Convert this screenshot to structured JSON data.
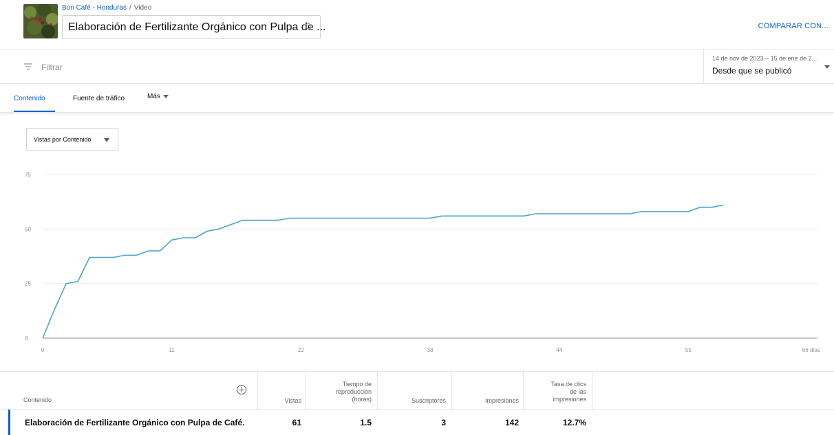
{
  "header": {
    "channel": "Bon Café - Honduras",
    "separator": "/",
    "section": "Video",
    "video_title": "Elaboración de Fertilizante Orgánico con Pulpa de ...",
    "compare_label": "COMPARAR CON..."
  },
  "filter": {
    "label": "Filtrar",
    "date_range": "14 de nov de 2023 – 15 de ene de 2...",
    "date_label": "Desde que se publicó"
  },
  "tabs": [
    {
      "label": "Contenido",
      "active": true
    },
    {
      "label": "Fuente de tráfico",
      "active": false
    },
    {
      "label": "Más",
      "active": false
    }
  ],
  "metric_select": {
    "label": "Vistas por Contenido"
  },
  "chart_data": {
    "type": "line",
    "x_unit_label": "días",
    "xlim": [
      0,
      66
    ],
    "ylim": [
      0,
      75
    ],
    "x_ticks": [
      0,
      11,
      22,
      33,
      44,
      55,
      66
    ],
    "y_ticks": [
      0,
      25,
      50,
      75
    ],
    "grid": true,
    "line_color": "#4aa3c8",
    "series": [
      {
        "x": [
          0,
          1,
          2,
          3,
          4,
          5,
          6,
          7,
          8,
          9,
          10,
          11,
          12,
          13,
          14,
          15,
          16,
          17,
          18,
          19,
          20,
          21,
          22,
          23,
          24,
          25,
          26,
          27,
          28,
          29,
          30,
          31,
          32,
          33,
          34,
          35,
          36,
          37,
          38,
          39,
          40,
          41,
          42,
          43,
          44,
          45,
          46,
          47,
          48,
          49,
          50,
          51,
          52,
          53,
          54,
          55,
          56,
          57,
          58
        ],
        "y": [
          0,
          13,
          25,
          26,
          37,
          37,
          37,
          38,
          38,
          40,
          40,
          45,
          46,
          46,
          49,
          50,
          52,
          54,
          54,
          54,
          54,
          55,
          55,
          55,
          55,
          55,
          55,
          55,
          55,
          55,
          55,
          55,
          55,
          55,
          56,
          56,
          56,
          56,
          56,
          56,
          56,
          56,
          57,
          57,
          57,
          57,
          57,
          57,
          57,
          57,
          57,
          58,
          58,
          58,
          58,
          58,
          60,
          60,
          61
        ]
      }
    ]
  },
  "table": {
    "headers": {
      "content": "Contenido",
      "views": "Vistas",
      "watch_time_l1": "Tiempo de",
      "watch_time_l2": "reproducción",
      "watch_time_l3": "(horas)",
      "subscribers": "Suscriptores",
      "impressions": "Impresiones",
      "ctr_l1": "Tasa de clics",
      "ctr_l2": "de las",
      "ctr_l3": "impresiones"
    },
    "row": {
      "title": "Elaboración de Fertilizante Orgánico con Pulpa de Café.",
      "views": "61",
      "watch_time": "1.5",
      "subscribers": "3",
      "impressions": "142",
      "ctr": "12.7%"
    }
  }
}
